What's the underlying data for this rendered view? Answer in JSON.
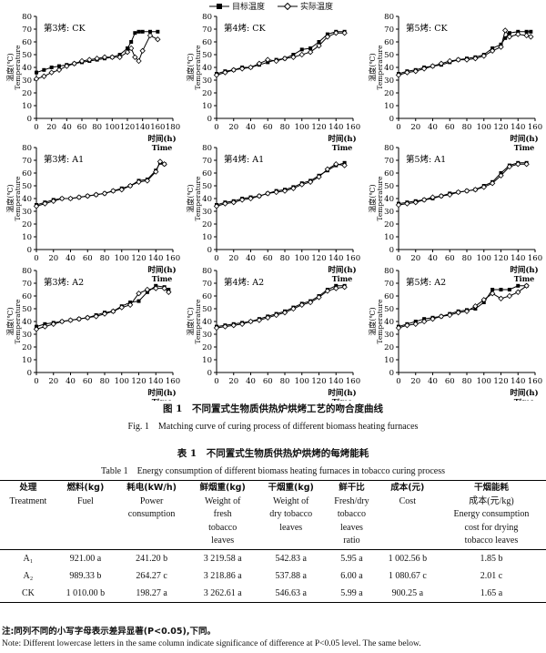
{
  "legend": {
    "target": "目标温度",
    "actual": "实际温度"
  },
  "figure_caption_zh": "图 1　不同置式生物质供热炉烘烤工艺的吻合度曲线",
  "figure_caption_en": "Fig. 1　Matching curve of curing process of different biomass heating furnaces",
  "table_title_zh": "表 1　不同置式生物质供热炉烘烤的每烤能耗",
  "table_title_en": "Table 1　Energy consumption of different biomass heating furnaces in tobacco curing process",
  "table": {
    "headers": [
      {
        "zh": "处理",
        "en": [
          "Treatment"
        ]
      },
      {
        "zh": "燃料(kg)",
        "en": [
          "Fuel"
        ]
      },
      {
        "zh": "耗电(kW/h)",
        "en": [
          "Power",
          "consumption"
        ]
      },
      {
        "zh": "鲜烟重(kg)",
        "en": [
          "Weight of",
          "fresh",
          "tobacco",
          "leaves"
        ]
      },
      {
        "zh": "干烟重(kg)",
        "en": [
          "Weight of",
          "dry tobacco",
          "leaves"
        ]
      },
      {
        "zh": "鲜干比",
        "en": [
          "Fresh/dry",
          "tobacco",
          "leaves",
          "ratio"
        ]
      },
      {
        "zh": "成本(元)",
        "en": [
          "Cost"
        ]
      },
      {
        "zh": "干烟能耗",
        "en": [
          "成本(元/kg)",
          "Energy consumption",
          "cost for drying",
          "tobacco leaves"
        ]
      }
    ],
    "rows": [
      [
        "A₁",
        "921.00 a",
        "241.20 b",
        "3 219.58 a",
        "542.83 a",
        "5.95 a",
        "1 002.56 b",
        "1.85 b"
      ],
      [
        "A₂",
        "989.33 b",
        "264.27 c",
        "3 218.86 a",
        "537.88 a",
        "6.00 a",
        "1 080.67 c",
        "2.01 c"
      ],
      [
        "CK",
        "1 010.00 b",
        "198.27 a",
        "3 262.61 a",
        "546.63 a",
        "5.99 a",
        "900.25 a",
        "1.65 a"
      ]
    ]
  },
  "note_zh": "注:同列不同的小写字母表示差异显著(P<0.05),下同。",
  "note_en": "Note: Different lowercase letters in the same column indicate significance of difference at P<0.05 level. The same below.",
  "chart_data": [
    {
      "type": "line",
      "title": "第3烤: CK",
      "xlabel": "时间(h) Time",
      "ylabel": "温度(℃) Temperature",
      "xlim": [
        0,
        180
      ],
      "ylim": [
        0,
        80
      ],
      "series": [
        {
          "name": "目标温度",
          "x": [
            0,
            10,
            20,
            30,
            40,
            50,
            60,
            70,
            80,
            90,
            100,
            110,
            120,
            125,
            130,
            135,
            140,
            150,
            160
          ],
          "y": [
            36,
            38,
            40,
            41,
            42,
            43,
            44,
            45,
            46,
            47,
            48,
            50,
            55,
            60,
            67,
            68,
            68,
            68,
            68
          ]
        },
        {
          "name": "实际温度",
          "x": [
            0,
            10,
            20,
            30,
            40,
            50,
            60,
            70,
            80,
            90,
            100,
            110,
            120,
            125,
            130,
            135,
            140,
            150,
            160
          ],
          "y": [
            31,
            33,
            36,
            38,
            41,
            43,
            45,
            46,
            47,
            48,
            48,
            48,
            52,
            55,
            48,
            45,
            53,
            65,
            62
          ]
        }
      ]
    },
    {
      "type": "line",
      "title": "第4烤: CK",
      "xlabel": "时间(h) Time",
      "ylabel": "温度(℃) Temperature",
      "xlim": [
        0,
        160
      ],
      "ylim": [
        0,
        80
      ],
      "series": [
        {
          "name": "目标温度",
          "x": [
            0,
            10,
            20,
            30,
            40,
            50,
            60,
            70,
            80,
            90,
            100,
            110,
            120,
            130,
            140,
            150
          ],
          "y": [
            35,
            37,
            38,
            40,
            40,
            42,
            44,
            46,
            47,
            50,
            54,
            55,
            60,
            66,
            68,
            68
          ]
        },
        {
          "name": "实际温度",
          "x": [
            0,
            10,
            20,
            30,
            40,
            50,
            60,
            70,
            80,
            90,
            100,
            110,
            120,
            130,
            140,
            150
          ],
          "y": [
            34,
            36,
            38,
            39,
            40,
            43,
            46,
            45,
            47,
            48,
            50,
            52,
            57,
            64,
            67,
            67
          ]
        }
      ]
    },
    {
      "type": "line",
      "title": "第5烤: CK",
      "xlabel": "时间(h) Time",
      "ylabel": "温度(℃) Temperature",
      "xlim": [
        0,
        160
      ],
      "ylim": [
        0,
        80
      ],
      "series": [
        {
          "name": "目标温度",
          "x": [
            0,
            10,
            20,
            30,
            40,
            50,
            60,
            70,
            80,
            90,
            100,
            110,
            120,
            125,
            130,
            140,
            150,
            155
          ],
          "y": [
            35,
            37,
            38,
            40,
            41,
            42,
            44,
            46,
            47,
            48,
            50,
            55,
            58,
            63,
            67,
            68,
            68,
            68
          ]
        },
        {
          "name": "实际温度",
          "x": [
            0,
            10,
            20,
            30,
            40,
            50,
            60,
            70,
            80,
            90,
            100,
            110,
            120,
            125,
            130,
            140,
            150,
            155
          ],
          "y": [
            34,
            36,
            37,
            39,
            41,
            43,
            45,
            46,
            46,
            47,
            49,
            53,
            56,
            69,
            64,
            66,
            65,
            64
          ]
        }
      ]
    },
    {
      "type": "line",
      "title": "第3烤: A1",
      "xlabel": "时间(h) Time",
      "ylabel": "温度(℃) Temperature",
      "xlim": [
        0,
        160
      ],
      "ylim": [
        0,
        80
      ],
      "series": [
        {
          "name": "目标温度",
          "x": [
            0,
            10,
            20,
            30,
            40,
            50,
            60,
            70,
            80,
            90,
            100,
            110,
            120,
            130,
            140,
            145,
            150
          ],
          "y": [
            35,
            37,
            39,
            40,
            40,
            41,
            42,
            43,
            44,
            46,
            48,
            50,
            54,
            55,
            62,
            68,
            67
          ]
        },
        {
          "name": "实际温度",
          "x": [
            0,
            10,
            20,
            30,
            40,
            50,
            60,
            70,
            80,
            90,
            100,
            110,
            120,
            130,
            140,
            145,
            150
          ],
          "y": [
            34,
            36,
            38,
            40,
            40,
            41,
            42,
            43,
            44,
            46,
            47,
            50,
            53,
            54,
            61,
            69,
            67
          ]
        }
      ]
    },
    {
      "type": "line",
      "title": "第4烤: A1",
      "xlabel": "时间(h) Time",
      "ylabel": "温度(℃) Temperature",
      "xlim": [
        0,
        160
      ],
      "ylim": [
        0,
        80
      ],
      "series": [
        {
          "name": "目标温度",
          "x": [
            0,
            10,
            20,
            30,
            40,
            50,
            60,
            70,
            80,
            90,
            100,
            110,
            120,
            130,
            140,
            150
          ],
          "y": [
            35,
            37,
            38,
            40,
            41,
            42,
            44,
            46,
            47,
            49,
            52,
            54,
            58,
            62,
            66,
            68
          ]
        },
        {
          "name": "实际温度",
          "x": [
            0,
            10,
            20,
            30,
            40,
            50,
            60,
            70,
            80,
            90,
            100,
            110,
            120,
            130,
            140,
            150
          ],
          "y": [
            34,
            36,
            37,
            39,
            40,
            42,
            44,
            45,
            46,
            48,
            51,
            53,
            57,
            63,
            67,
            66
          ]
        }
      ]
    },
    {
      "type": "line",
      "title": "第5烤: A1",
      "xlabel": "时间(h) Time",
      "ylabel": "温度(℃) Temperature",
      "xlim": [
        0,
        160
      ],
      "ylim": [
        0,
        80
      ],
      "series": [
        {
          "name": "目标温度",
          "x": [
            0,
            10,
            20,
            30,
            40,
            50,
            60,
            70,
            80,
            90,
            100,
            110,
            120,
            130,
            140,
            150
          ],
          "y": [
            36,
            37,
            38,
            39,
            40,
            42,
            44,
            45,
            46,
            47,
            50,
            53,
            60,
            66,
            68,
            68
          ]
        },
        {
          "name": "实际温度",
          "x": [
            0,
            10,
            20,
            30,
            40,
            50,
            60,
            70,
            80,
            90,
            100,
            110,
            120,
            130,
            140,
            150
          ],
          "y": [
            35,
            36,
            37,
            39,
            41,
            42,
            43,
            45,
            46,
            47,
            49,
            52,
            58,
            65,
            67,
            67
          ]
        }
      ]
    },
    {
      "type": "line",
      "title": "第3烤: A2",
      "xlabel": "时间(h) Time",
      "ylabel": "温度(℃) Temperature",
      "xlim": [
        0,
        160
      ],
      "ylim": [
        0,
        80
      ],
      "series": [
        {
          "name": "目标温度",
          "x": [
            0,
            10,
            20,
            30,
            40,
            50,
            60,
            70,
            80,
            90,
            100,
            110,
            120,
            130,
            140,
            150,
            155
          ],
          "y": [
            36,
            38,
            39,
            40,
            41,
            42,
            43,
            45,
            47,
            48,
            52,
            55,
            56,
            63,
            68,
            67,
            65
          ]
        },
        {
          "name": "实际温度",
          "x": [
            0,
            10,
            20,
            30,
            40,
            50,
            60,
            70,
            80,
            90,
            100,
            110,
            120,
            130,
            140,
            150,
            155
          ],
          "y": [
            34,
            36,
            38,
            40,
            41,
            42,
            43,
            44,
            46,
            48,
            51,
            53,
            62,
            65,
            66,
            66,
            63
          ]
        }
      ]
    },
    {
      "type": "line",
      "title": "第4烤: A2",
      "xlabel": "时间(h) Time",
      "ylabel": "温度(℃) Temperature",
      "xlim": [
        0,
        160
      ],
      "ylim": [
        0,
        80
      ],
      "series": [
        {
          "name": "目标温度",
          "x": [
            0,
            10,
            20,
            30,
            40,
            50,
            60,
            70,
            80,
            90,
            100,
            110,
            120,
            130,
            140,
            150
          ],
          "y": [
            36,
            37,
            38,
            39,
            40,
            42,
            44,
            46,
            48,
            51,
            54,
            56,
            60,
            65,
            68,
            68
          ]
        },
        {
          "name": "实际温度",
          "x": [
            0,
            10,
            20,
            30,
            40,
            50,
            60,
            70,
            80,
            90,
            100,
            110,
            120,
            130,
            140,
            150
          ],
          "y": [
            35,
            36,
            37,
            38,
            40,
            41,
            43,
            45,
            47,
            50,
            53,
            55,
            59,
            64,
            66,
            67
          ]
        }
      ]
    },
    {
      "type": "line",
      "title": "第5烤: A2",
      "xlabel": "时间(h) Time",
      "ylabel": "温度(℃) Temperature",
      "xlim": [
        0,
        160
      ],
      "ylim": [
        0,
        80
      ],
      "series": [
        {
          "name": "目标温度",
          "x": [
            0,
            10,
            20,
            30,
            40,
            50,
            60,
            70,
            80,
            90,
            100,
            110,
            120,
            130,
            140,
            150
          ],
          "y": [
            36,
            38,
            40,
            42,
            43,
            44,
            46,
            48,
            49,
            50,
            55,
            65,
            65,
            65,
            68,
            68
          ]
        },
        {
          "name": "实际温度",
          "x": [
            0,
            10,
            20,
            30,
            40,
            50,
            60,
            70,
            80,
            90,
            100,
            110,
            120,
            130,
            140,
            150
          ],
          "y": [
            35,
            37,
            38,
            40,
            42,
            44,
            45,
            47,
            48,
            52,
            57,
            62,
            58,
            60,
            63,
            68
          ]
        }
      ]
    }
  ]
}
